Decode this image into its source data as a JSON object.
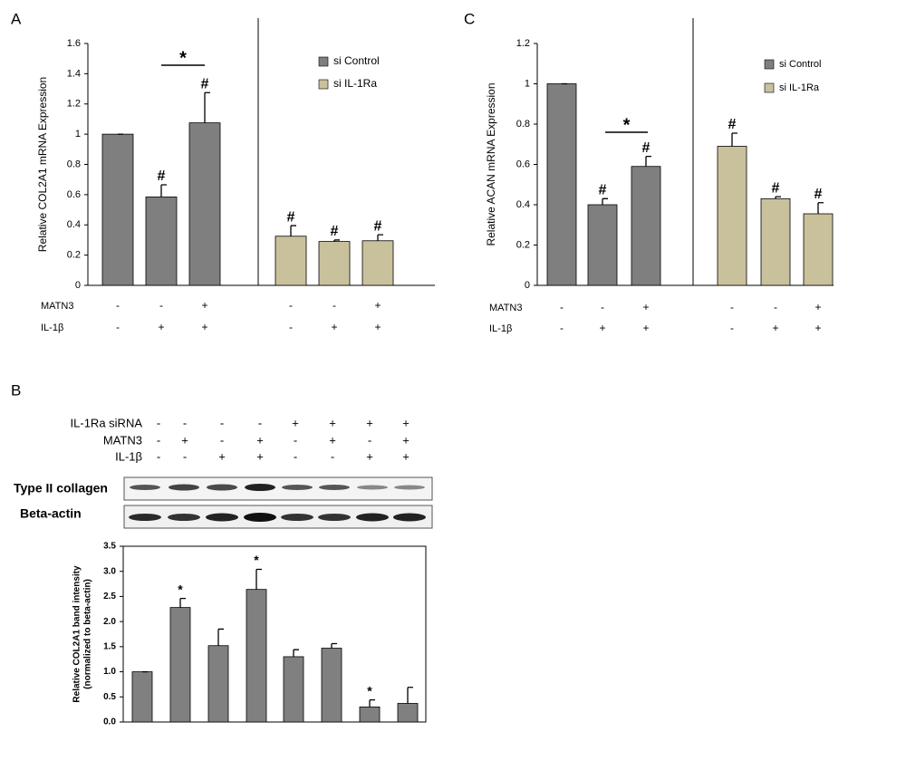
{
  "chart_data": [
    {
      "type": "bar",
      "panel_label": "A",
      "ylabel": "Relative COL2A1 mRNA Expression",
      "ylim": [
        0,
        1.6
      ],
      "yticks": [
        0,
        0.2,
        0.4,
        0.6,
        0.8,
        1,
        1.2,
        1.4,
        1.6
      ],
      "series": [
        {
          "name": "si Control",
          "color": "#7f7f7f",
          "values": [
            1,
            0.585,
            1.075,
            null,
            null,
            null
          ],
          "errors": [
            0,
            0.08,
            0.2,
            null,
            null,
            null
          ],
          "markers": [
            null,
            "#",
            "#",
            null,
            null,
            null
          ]
        },
        {
          "name": "si IL-1Ra",
          "color": "#c9c19c",
          "values": [
            null,
            null,
            null,
            0.325,
            0.29,
            0.295
          ],
          "errors": [
            null,
            null,
            null,
            0.07,
            0.01,
            0.04
          ],
          "markers": [
            null,
            null,
            null,
            "#",
            "#",
            "#"
          ]
        }
      ],
      "significance": "*",
      "conditions": [
        {
          "label": "MATN3",
          "signs": [
            "-",
            "-",
            "+",
            "-",
            "-",
            "+"
          ]
        },
        {
          "label": "IL-1β",
          "signs": [
            "-",
            "+",
            "+",
            "-",
            "+",
            "+"
          ]
        }
      ]
    },
    {
      "type": "bar",
      "panel_label": "C",
      "ylabel": "Relative ACAN mRNA Expression",
      "ylim": [
        0,
        1.2
      ],
      "yticks": [
        0,
        0.2,
        0.4,
        0.6,
        0.8,
        1,
        1.2
      ],
      "series": [
        {
          "name": "si Control",
          "color": "#7f7f7f",
          "values": [
            1,
            0.4,
            0.59,
            null,
            null,
            null
          ],
          "errors": [
            0,
            0.03,
            0.05,
            null,
            null,
            null
          ],
          "markers": [
            null,
            "#",
            "#",
            null,
            null,
            null
          ]
        },
        {
          "name": "si IL-1Ra",
          "color": "#c9c19c",
          "values": [
            null,
            null,
            null,
            0.69,
            0.43,
            0.355
          ],
          "errors": [
            null,
            null,
            null,
            0.065,
            0.01,
            0.055
          ],
          "markers": [
            null,
            null,
            null,
            "#",
            "#",
            "#"
          ]
        }
      ],
      "significance": "*",
      "conditions": [
        {
          "label": "MATN3",
          "signs": [
            "-",
            "-",
            "+",
            "-",
            "-",
            "+"
          ]
        },
        {
          "label": "IL-1β",
          "signs": [
            "-",
            "+",
            "+",
            "-",
            "+",
            "+"
          ]
        }
      ]
    },
    {
      "type": "bar",
      "panel_label": "B",
      "ylabel": [
        "Relative COL2A1 band intensity",
        "(normalized to beta-actin)"
      ],
      "ylim": [
        0,
        3.5
      ],
      "yticks": [
        {
          "value": 0,
          "label": "0.0"
        },
        0.5,
        {
          "value": 1,
          "label": "1.0"
        },
        1.5,
        {
          "value": 2,
          "label": "2.0"
        },
        2.5,
        {
          "value": 3,
          "label": "3.0"
        },
        3.5
      ],
      "series": [
        {
          "color": "#808080",
          "values": [
            1.0,
            2.28,
            1.52,
            2.64,
            1.3,
            1.47,
            0.3,
            0.37
          ],
          "errors": [
            0,
            0.18,
            0.33,
            0.4,
            0.14,
            0.09,
            0.14,
            0.32
          ],
          "markers": [
            null,
            "*",
            null,
            "*",
            null,
            null,
            "*",
            null
          ]
        }
      ],
      "conditions": [
        {
          "label": "IL-1Ra siRNA",
          "signs": [
            "-",
            "-",
            "-",
            "-",
            "+",
            "+",
            "+",
            "+"
          ]
        },
        {
          "label": "MATN3",
          "signs": [
            "-",
            "+",
            "-",
            "+",
            "-",
            "+",
            "-",
            "+"
          ]
        },
        {
          "label": "IL-1β",
          "signs": [
            "-",
            "-",
            "+",
            "+",
            "-",
            "-",
            "+",
            "+"
          ]
        }
      ],
      "bands": [
        "Type II collagen",
        "Beta-actin"
      ]
    }
  ]
}
